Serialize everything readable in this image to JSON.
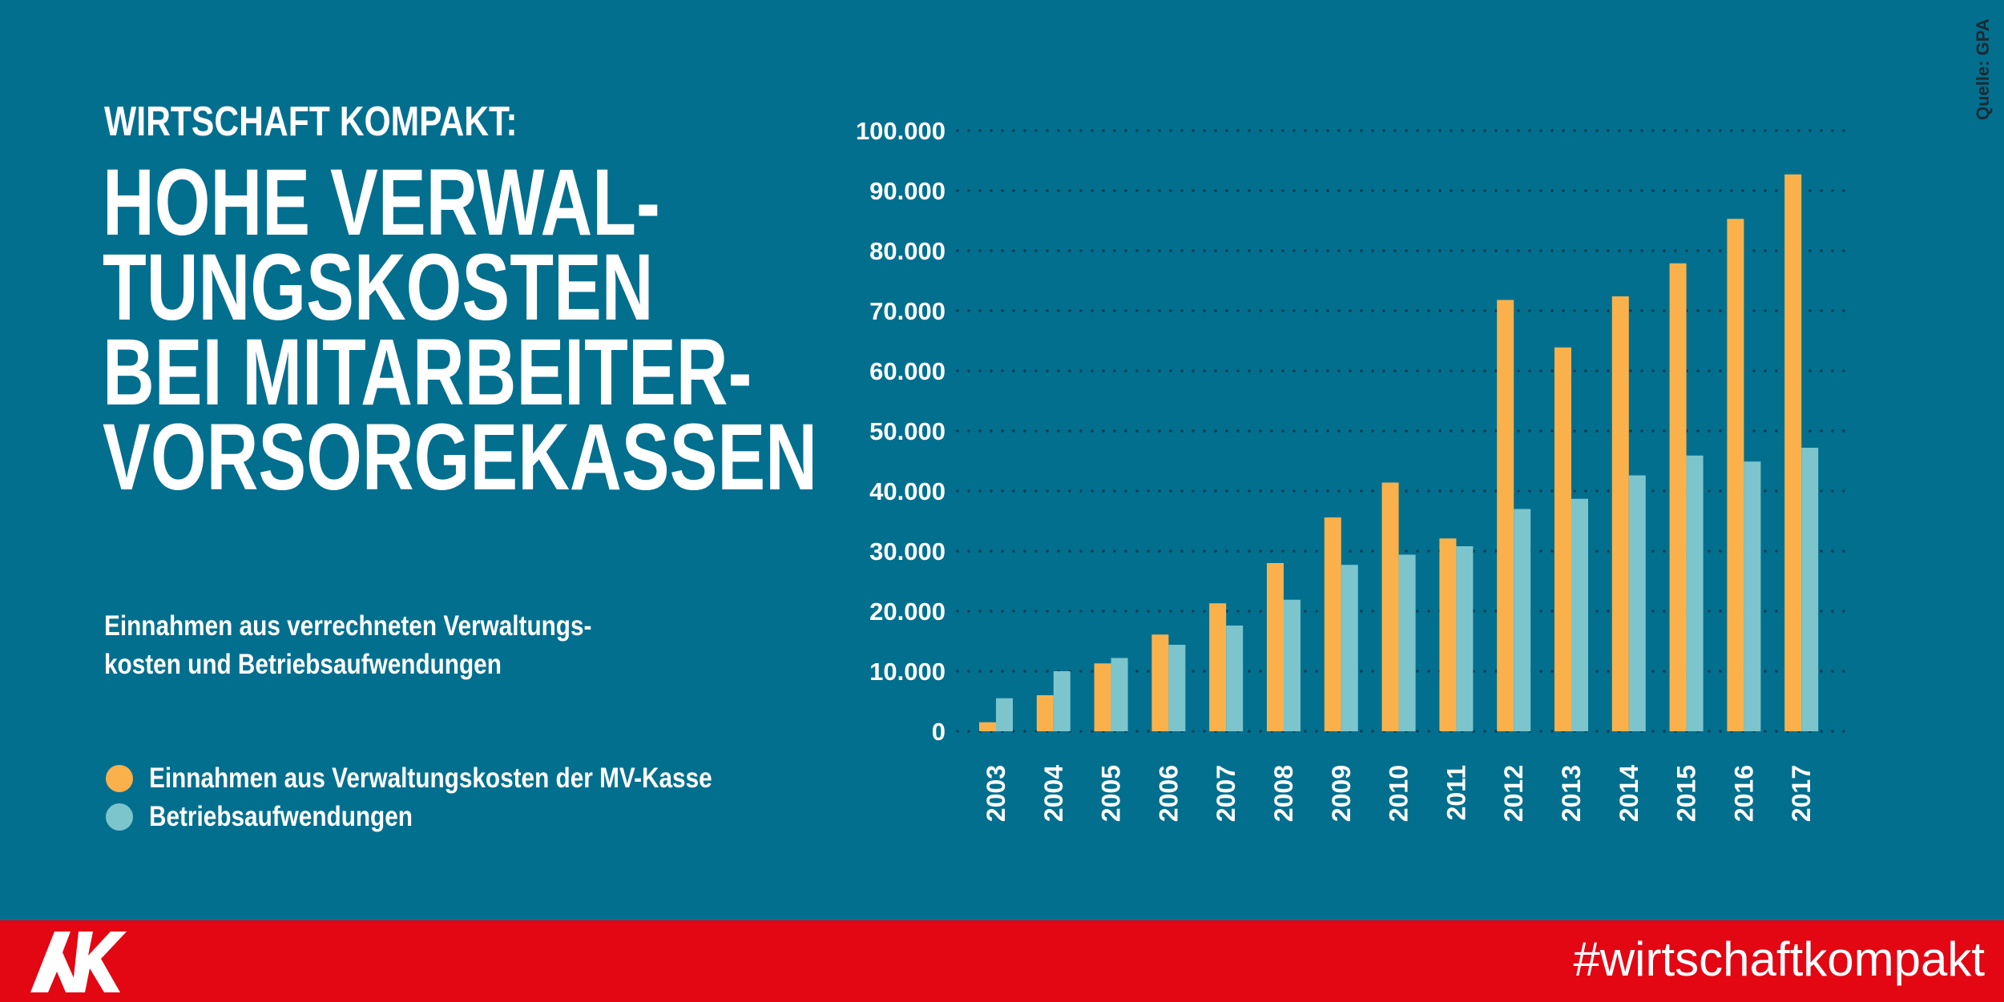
{
  "header": {
    "kicker": "WIRTSCHAFT KOMPAKT:",
    "title_lines": [
      "HOHE VERWAL-",
      "TUNGSKOSTEN",
      "BEI MITARBEITER-",
      "VORSORGEKASSEN"
    ],
    "subtitle_lines": [
      "Einnahmen aus verrechneten Verwaltungs-",
      "kosten und Betriebsaufwendungen"
    ]
  },
  "source": "Quelle: GPA",
  "footer": {
    "hashtag": "#wirtschaftkompakt",
    "logo_text": "AK"
  },
  "colors": {
    "background": "#036f8f",
    "orange": "#fbb14b",
    "teal": "#7cc5cc",
    "footer": "#e30613"
  },
  "chart_data": {
    "type": "bar",
    "categories": [
      "2003",
      "2004",
      "2005",
      "2006",
      "2007",
      "2008",
      "2009",
      "2010",
      "2011",
      "2012",
      "2013",
      "2014",
      "2015",
      "2016",
      "2017"
    ],
    "series": [
      {
        "name": "Einnahmen aus Verwaltungskosten der MV-Kasse",
        "color": "#fbb14b",
        "values": [
          1500,
          6000,
          11300,
          16100,
          21300,
          28000,
          35600,
          41400,
          32100,
          71800,
          63900,
          72400,
          77900,
          85300,
          92700
        ]
      },
      {
        "name": "Betriebsaufwendungen",
        "color": "#7cc5cc",
        "values": [
          5500,
          10000,
          12200,
          14400,
          17600,
          21900,
          27700,
          29400,
          30800,
          37000,
          38700,
          42600,
          45900,
          44900,
          47200
        ]
      }
    ],
    "yticks": [
      "0",
      "10.000",
      "20.000",
      "30.000",
      "40.000",
      "50.000",
      "60.000",
      "70.000",
      "80.000",
      "90.000",
      "100.000"
    ],
    "ylim": [
      0,
      100000
    ],
    "grid": true,
    "grid_style": "dotted",
    "legend_placement": "bottom-left"
  }
}
